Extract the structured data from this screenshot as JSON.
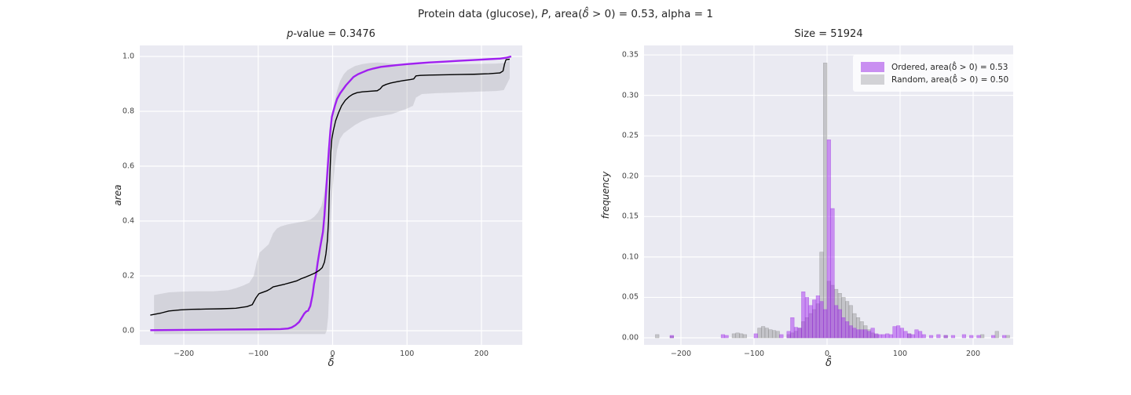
{
  "figure": {
    "suptitle": {
      "pre": "Protein data (glucose), ",
      "p": "P",
      "mid": ", area(",
      "delta": "δ̂",
      "post": " > 0) = 0.53, alpha = 1"
    }
  },
  "left_plot": {
    "title_italic": "p",
    "title_rest": "-value = 0.3476",
    "xlabel": "δ̂",
    "ylabel": "area"
  },
  "right_plot": {
    "title": "Size = 51924",
    "xlabel": "δ̂",
    "ylabel": "frequency",
    "legend": [
      {
        "label": "Ordered, area(δ̂ > 0) = 0.53",
        "color": "#c98ff1"
      },
      {
        "label": "Random, area(δ̂ > 0) = 0.50",
        "color": "#d2d2d6"
      }
    ]
  },
  "colors": {
    "axes_bg": "#eaeaf2",
    "grid": "#ffffff",
    "ordered_line": "#a020f0",
    "random_line": "#000000",
    "band_fill": "rgba(110,110,118,0.18)",
    "hist_ordered_fill": "rgba(160,32,240,0.45)",
    "hist_ordered_edge": "rgba(150,40,220,0.55)",
    "hist_random_fill": "rgba(127,127,127,0.35)",
    "hist_random_edge": "rgba(120,120,120,0.5)"
  },
  "chart_data": [
    {
      "type": "line",
      "title": "p-value = 0.3476",
      "xlabel": "delta-hat",
      "ylabel": "area",
      "xlim": [
        -259.1,
        254.9
      ],
      "ylim": [
        -0.0514,
        1.04
      ],
      "xticks": [
        -200,
        -100,
        0,
        100,
        200
      ],
      "xtick_labels": [
        "−200",
        "−100",
        "0",
        "100",
        "200"
      ],
      "yticks": [
        0.0,
        0.2,
        0.4,
        0.6,
        0.8,
        1.0
      ],
      "ytick_labels": [
        "0.0",
        "0.2",
        "0.4",
        "0.6",
        "0.8",
        "1.0"
      ],
      "band": {
        "x": [
          -240,
          -220,
          -200,
          -180,
          -160,
          -140,
          -130,
          -120,
          -112,
          -106,
          -102,
          -98,
          -92,
          -86,
          -80,
          -75,
          -70,
          -60,
          -50,
          -40,
          -30,
          -25,
          -20,
          -15,
          -12,
          -10,
          -8,
          -6,
          -5,
          -4,
          -3,
          -2,
          0,
          3,
          6,
          10,
          15,
          20,
          30,
          40,
          50,
          60,
          70,
          80,
          90,
          100,
          108,
          112,
          120,
          140,
          160,
          180,
          200,
          220,
          230,
          238
        ],
        "lo": [
          -0.012,
          -0.012,
          -0.012,
          -0.012,
          -0.012,
          -0.012,
          -0.012,
          -0.012,
          -0.012,
          -0.012,
          -0.012,
          -0.012,
          -0.012,
          -0.012,
          -0.012,
          -0.012,
          -0.012,
          -0.012,
          -0.012,
          -0.012,
          -0.012,
          -0.012,
          -0.012,
          -0.012,
          -0.012,
          -0.012,
          0.0,
          0.05,
          0.12,
          0.25,
          0.35,
          0.44,
          0.52,
          0.6,
          0.66,
          0.7,
          0.72,
          0.73,
          0.75,
          0.765,
          0.775,
          0.78,
          0.785,
          0.79,
          0.8,
          0.81,
          0.82,
          0.85,
          0.863,
          0.866,
          0.868,
          0.87,
          0.872,
          0.874,
          0.877,
          0.92
        ],
        "hi": [
          0.13,
          0.14,
          0.143,
          0.144,
          0.144,
          0.148,
          0.155,
          0.165,
          0.175,
          0.2,
          0.25,
          0.285,
          0.3,
          0.315,
          0.355,
          0.372,
          0.38,
          0.388,
          0.393,
          0.398,
          0.405,
          0.415,
          0.43,
          0.455,
          0.49,
          0.53,
          0.57,
          0.62,
          0.65,
          0.69,
          0.72,
          0.75,
          0.79,
          0.84,
          0.875,
          0.91,
          0.935,
          0.95,
          0.965,
          0.972,
          0.976,
          0.978,
          0.976,
          0.973,
          0.971,
          0.97,
          0.97,
          0.97,
          0.97,
          0.971,
          0.971,
          0.972,
          0.973,
          0.974,
          0.976,
          0.985
        ]
      },
      "series": [
        {
          "name": "ordered",
          "x": [
            -245,
            -200,
            -150,
            -100,
            -70,
            -60,
            -55,
            -50,
            -45,
            -42,
            -38,
            -35,
            -33,
            -30,
            -27,
            -25,
            -22,
            -20,
            -17,
            -15,
            -13,
            -11,
            -9,
            -7,
            -5,
            -3,
            -1,
            1,
            3,
            6,
            10,
            14,
            18,
            23,
            28,
            34,
            40,
            47,
            55,
            65,
            75,
            85,
            100,
            115,
            130,
            150,
            170,
            190,
            210,
            225,
            233,
            240
          ],
          "y": [
            0.002,
            0.003,
            0.004,
            0.005,
            0.006,
            0.008,
            0.012,
            0.02,
            0.032,
            0.045,
            0.063,
            0.071,
            0.073,
            0.09,
            0.13,
            0.17,
            0.21,
            0.25,
            0.3,
            0.33,
            0.36,
            0.42,
            0.5,
            0.58,
            0.66,
            0.73,
            0.78,
            0.8,
            0.82,
            0.845,
            0.865,
            0.88,
            0.895,
            0.91,
            0.925,
            0.935,
            0.942,
            0.95,
            0.956,
            0.962,
            0.965,
            0.968,
            0.972,
            0.975,
            0.978,
            0.981,
            0.984,
            0.987,
            0.99,
            0.992,
            0.995,
            1.0
          ]
        },
        {
          "name": "random_mean",
          "x": [
            -245,
            -230,
            -220,
            -205,
            -190,
            -170,
            -150,
            -130,
            -115,
            -108,
            -103,
            -99,
            -96,
            -92,
            -88,
            -84,
            -80,
            -72,
            -64,
            -56,
            -48,
            -42,
            -36,
            -30,
            -24,
            -18,
            -14,
            -11,
            -9,
            -7,
            -5.5,
            -4.5,
            -3.5,
            -2.5,
            -1,
            1,
            4,
            8,
            12,
            17,
            22,
            27,
            33,
            40,
            50,
            60,
            64,
            67,
            72,
            78,
            85,
            95,
            105,
            109,
            112,
            118,
            130,
            150,
            170,
            190,
            210,
            225,
            229,
            231,
            233,
            238
          ],
          "y": [
            0.057,
            0.065,
            0.072,
            0.076,
            0.078,
            0.079,
            0.08,
            0.082,
            0.088,
            0.095,
            0.12,
            0.135,
            0.138,
            0.142,
            0.146,
            0.152,
            0.16,
            0.165,
            0.17,
            0.176,
            0.182,
            0.19,
            0.196,
            0.203,
            0.21,
            0.22,
            0.23,
            0.25,
            0.28,
            0.33,
            0.4,
            0.5,
            0.58,
            0.65,
            0.7,
            0.73,
            0.765,
            0.795,
            0.82,
            0.84,
            0.853,
            0.862,
            0.868,
            0.871,
            0.873,
            0.875,
            0.882,
            0.892,
            0.898,
            0.903,
            0.907,
            0.912,
            0.916,
            0.918,
            0.929,
            0.931,
            0.932,
            0.933,
            0.934,
            0.935,
            0.937,
            0.94,
            0.947,
            0.972,
            0.988,
            0.99
          ]
        }
      ]
    },
    {
      "type": "histogram",
      "title": "Size = 51924",
      "xlabel": "delta-hat",
      "ylabel": "frequency",
      "xlim": [
        -250.5,
        254.8
      ],
      "ylim": [
        -0.0087,
        0.3617
      ],
      "xticks": [
        -200,
        -100,
        0,
        100,
        200
      ],
      "xtick_labels": [
        "−200",
        "−100",
        "0",
        "100",
        "200"
      ],
      "yticks": [
        0.0,
        0.05,
        0.1,
        0.15,
        0.2,
        0.25,
        0.3,
        0.35
      ],
      "ytick_labels": [
        "0.00",
        "0.05",
        "0.10",
        "0.15",
        "0.20",
        "0.25",
        "0.30",
        "0.35"
      ],
      "bin_width": 5,
      "series": [
        {
          "name": "Random, area(δ̂ > 0) = 0.50",
          "bars": [
            [
              -235,
              0.004
            ],
            [
              -215,
              0.002
            ],
            [
              -130,
              0.005
            ],
            [
              -125,
              0.006
            ],
            [
              -120,
              0.005
            ],
            [
              -115,
              0.004
            ],
            [
              -95,
              0.012
            ],
            [
              -90,
              0.014
            ],
            [
              -85,
              0.012
            ],
            [
              -80,
              0.01
            ],
            [
              -75,
              0.009
            ],
            [
              -70,
              0.008
            ],
            [
              -55,
              0.004
            ],
            [
              -50,
              0.006
            ],
            [
              -45,
              0.008
            ],
            [
              -40,
              0.012
            ],
            [
              -35,
              0.02
            ],
            [
              -30,
              0.025
            ],
            [
              -25,
              0.03
            ],
            [
              -20,
              0.035
            ],
            [
              -15,
              0.042
            ],
            [
              -10,
              0.106
            ],
            [
              -5,
              0.34
            ],
            [
              0,
              0.07
            ],
            [
              5,
              0.065
            ],
            [
              10,
              0.06
            ],
            [
              15,
              0.055
            ],
            [
              20,
              0.05
            ],
            [
              25,
              0.045
            ],
            [
              30,
              0.04
            ],
            [
              35,
              0.03
            ],
            [
              40,
              0.025
            ],
            [
              45,
              0.02
            ],
            [
              50,
              0.015
            ],
            [
              55,
              0.01
            ],
            [
              60,
              0.006
            ],
            [
              65,
              0.004
            ],
            [
              110,
              0.005
            ],
            [
              160,
              0.003
            ],
            [
              210,
              0.004
            ],
            [
              230,
              0.008
            ],
            [
              245,
              0.003
            ]
          ]
        },
        {
          "name": "Ordered, area(δ̂ > 0) = 0.53",
          "bars": [
            [
              -215,
              0.003
            ],
            [
              -145,
              0.004
            ],
            [
              -140,
              0.003
            ],
            [
              -100,
              0.005
            ],
            [
              -65,
              0.004
            ],
            [
              -55,
              0.008
            ],
            [
              -50,
              0.025
            ],
            [
              -45,
              0.013
            ],
            [
              -40,
              0.012
            ],
            [
              -35,
              0.057
            ],
            [
              -30,
              0.05
            ],
            [
              -25,
              0.04
            ],
            [
              -20,
              0.047
            ],
            [
              -15,
              0.052
            ],
            [
              -10,
              0.045
            ],
            [
              -5,
              0.035
            ],
            [
              0,
              0.245
            ],
            [
              5,
              0.16
            ],
            [
              10,
              0.04
            ],
            [
              15,
              0.035
            ],
            [
              20,
              0.025
            ],
            [
              25,
              0.02
            ],
            [
              30,
              0.015
            ],
            [
              35,
              0.012
            ],
            [
              40,
              0.01
            ],
            [
              45,
              0.01
            ],
            [
              50,
              0.01
            ],
            [
              55,
              0.008
            ],
            [
              60,
              0.012
            ],
            [
              65,
              0.005
            ],
            [
              70,
              0.004
            ],
            [
              75,
              0.004
            ],
            [
              80,
              0.005
            ],
            [
              85,
              0.004
            ],
            [
              90,
              0.014
            ],
            [
              95,
              0.015
            ],
            [
              100,
              0.012
            ],
            [
              105,
              0.008
            ],
            [
              110,
              0.005
            ],
            [
              115,
              0.004
            ],
            [
              120,
              0.01
            ],
            [
              125,
              0.008
            ],
            [
              130,
              0.004
            ],
            [
              140,
              0.003
            ],
            [
              150,
              0.004
            ],
            [
              160,
              0.003
            ],
            [
              170,
              0.003
            ],
            [
              185,
              0.004
            ],
            [
              195,
              0.003
            ],
            [
              205,
              0.003
            ],
            [
              225,
              0.003
            ],
            [
              240,
              0.003
            ]
          ]
        }
      ]
    }
  ]
}
